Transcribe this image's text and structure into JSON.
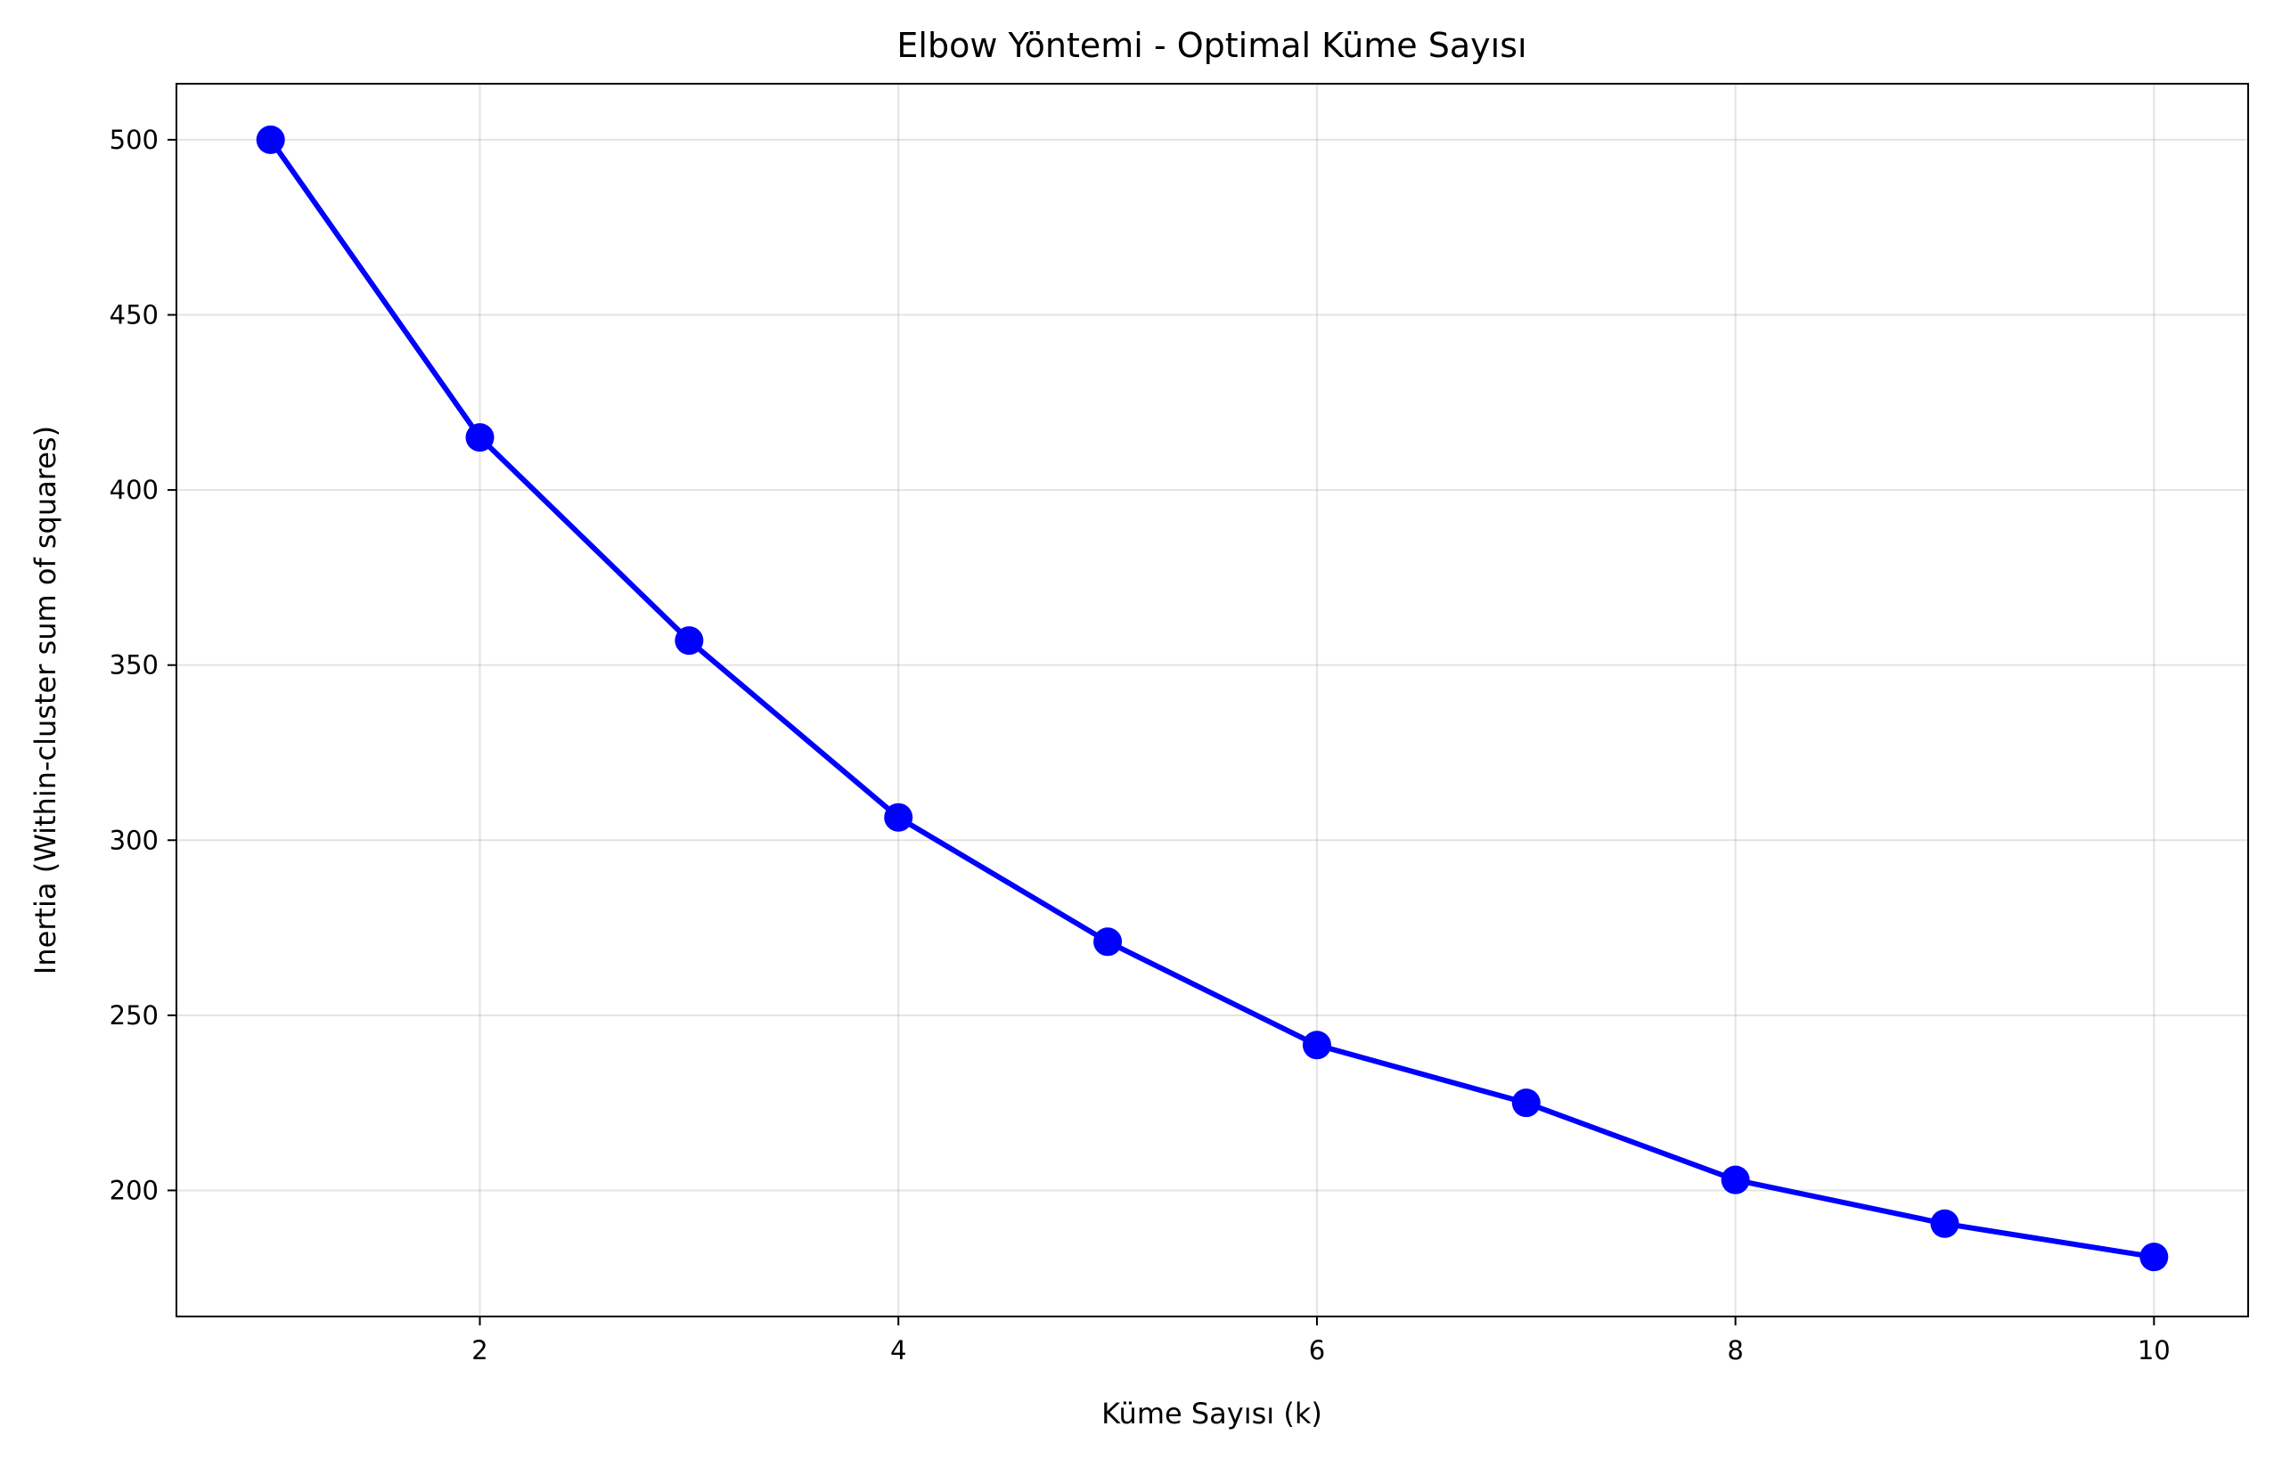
{
  "chart_data": {
    "type": "line",
    "title": "Elbow Yöntemi - Optimal Küme Sayısı",
    "xlabel": "Küme Sayısı (k)",
    "ylabel": "Inertia (Within-cluster sum of squares)",
    "x": [
      1,
      2,
      3,
      4,
      5,
      6,
      7,
      8,
      9,
      10
    ],
    "series": [
      {
        "values": [
          500,
          415,
          357,
          306.5,
          271,
          241.5,
          225,
          203,
          190.5,
          181
        ],
        "color": "#0000ff",
        "marker": "circle"
      }
    ],
    "xlim": [
      0.55,
      10.45
    ],
    "ylim": [
      164.0,
      516.0
    ],
    "xticks": [
      2,
      4,
      6,
      8,
      10
    ],
    "xtick_labels": [
      "2",
      "4",
      "6",
      "8",
      "10"
    ],
    "yticks": [
      200,
      250,
      300,
      350,
      400,
      450,
      500
    ],
    "ytick_labels": [
      "200",
      "250",
      "300",
      "350",
      "400",
      "450",
      "500"
    ],
    "grid": true,
    "legend": "none"
  }
}
